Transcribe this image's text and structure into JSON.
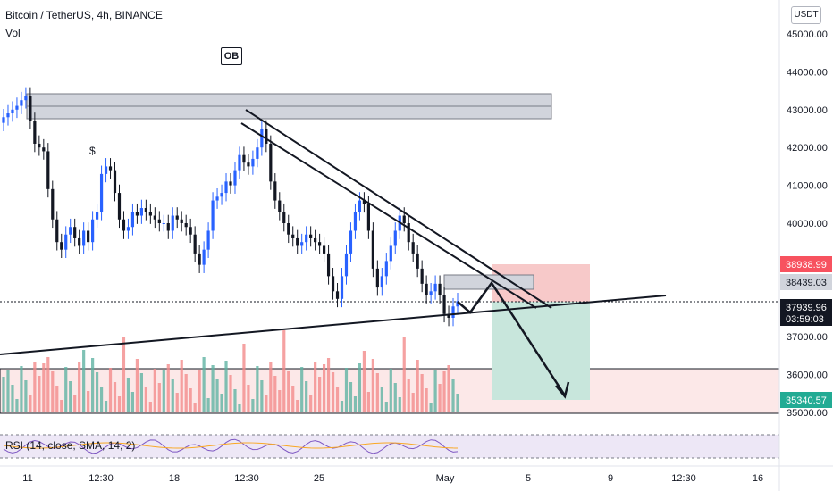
{
  "header": {
    "symbol_line": "Bitcoin / TetherUS, 4h, BINANCE",
    "volume_label": "Vol",
    "ob_label": "OB",
    "currency_badge": "USDT",
    "dollar_marker": "$"
  },
  "rsi": {
    "label": "RSI (14, close, SMA, 14, 2)"
  },
  "price_axis": {
    "ticks": [
      "45000.00",
      "44000.00",
      "43000.00",
      "42000.00",
      "41000.00",
      "40000.00",
      "37000.00",
      "36000.00",
      "35000.00"
    ]
  },
  "time_axis": {
    "ticks": [
      "11",
      "12:30",
      "18",
      "12:30",
      "25",
      "May",
      "5",
      "9",
      "12:30",
      "16"
    ]
  },
  "price_labels": [
    {
      "value": "38938.99",
      "bg": "#f7525f"
    },
    {
      "value": "38439.03",
      "bg": "#d1d4dc"
    },
    {
      "value": "37939.96",
      "sub": "03:59:03",
      "bg": "#131722"
    },
    {
      "value": "35340.57",
      "bg": "#22ab94"
    }
  ],
  "colors": {
    "up": "#2962ff",
    "down": "#131722",
    "vol_up": "#5fb3a3",
    "vol_down": "#f28b8b",
    "stop_zone": "#f7c9c9",
    "target_zone": "#c8e6dc",
    "supply_zone": "#d1d4dc",
    "rsi_band": "#ede7f6"
  },
  "chart_data": {
    "type": "candlestick",
    "title": "Bitcoin / TetherUS, 4h, BINANCE",
    "ylim": [
      34800,
      45500
    ],
    "x_ticks": [
      "11",
      "12:30",
      "18",
      "12:30",
      "25",
      "May",
      "5",
      "9",
      "12:30",
      "16"
    ],
    "closes": [
      42800,
      42900,
      43000,
      43100,
      43250,
      43350,
      42700,
      42100,
      42000,
      41900,
      40900,
      40100,
      39500,
      39300,
      39700,
      39900,
      39600,
      39400,
      39800,
      39500,
      40100,
      40300,
      41300,
      41500,
      41400,
      40800,
      40100,
      39800,
      39900,
      40300,
      40200,
      40400,
      40300,
      40200,
      40100,
      40000,
      40000,
      39800,
      40200,
      40100,
      40000,
      39900,
      39700,
      39200,
      38900,
      39300,
      39800,
      40600,
      40700,
      40800,
      41100,
      41000,
      41400,
      41800,
      41600,
      41500,
      41700,
      42000,
      42500,
      42100,
      41100,
      40600,
      40300,
      40000,
      39700,
      39600,
      39400,
      39500,
      39700,
      39600,
      39500,
      39400,
      39200,
      38600,
      38200,
      38000,
      38600,
      39200,
      39800,
      40300,
      40600,
      40500,
      39800,
      38800,
      38300,
      38600,
      39000,
      39400,
      39800,
      40200,
      40000,
      39500,
      39200,
      38800,
      38400,
      38100,
      38200,
      38400,
      38100,
      37600,
      37500,
      37800,
      37939.96
    ],
    "volume_last": 35000,
    "levels": {
      "stop_loss": 38938.99,
      "entry": 38439.03,
      "last": 37939.96,
      "target": 35340.57
    }
  }
}
